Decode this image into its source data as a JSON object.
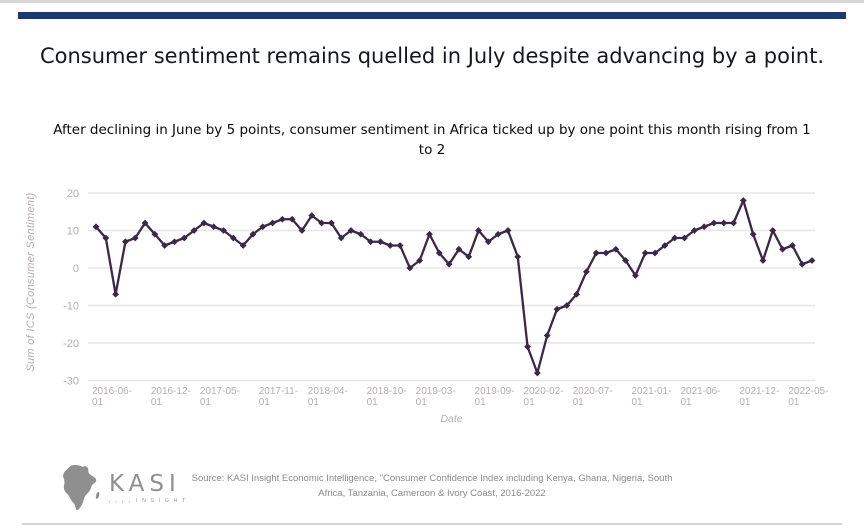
{
  "header": {
    "title": "Consumer sentiment remains quelled in July despite advancing by a point.",
    "subtitle": "After declining in June by 5 points, consumer sentiment in Africa ticked up by one point this month rising from 1 to 2"
  },
  "chart_data": {
    "type": "line",
    "title": "",
    "xlabel": "Date",
    "ylabel": "Sum of ICS (Consumer Sentiment)",
    "ylim": [
      -32,
      24
    ],
    "yticks": [
      20,
      10,
      0,
      -10,
      -20,
      -30
    ],
    "grid": true,
    "legend": "none",
    "line_color": "#3d2749",
    "grid_color": "#e8e5e5",
    "axis_text_color": "#b5aeae",
    "x_tick_labels": [
      "2016-06-01",
      "2016-12-01",
      "2017-05-01",
      "2017-11-01",
      "2018-04-01",
      "2018-10-01",
      "2019-03-01",
      "2019-09-01",
      "2020-02-01",
      "2020-07-01",
      "2021-01-01",
      "2021-06-01",
      "2021-12-01",
      "2022-05-01"
    ],
    "x_tick_indices": [
      0,
      6,
      11,
      17,
      22,
      28,
      33,
      39,
      44,
      49,
      55,
      60,
      66,
      71
    ],
    "series": [
      {
        "name": "Sum of ICS (Consumer Sentiment)",
        "values": [
          11,
          8,
          -7,
          7,
          8,
          12,
          9,
          6,
          7,
          8,
          10,
          12,
          11,
          10,
          8,
          6,
          9,
          11,
          12,
          13,
          13,
          10,
          14,
          12,
          12,
          8,
          10,
          9,
          7,
          7,
          6,
          6,
          0,
          2,
          9,
          4,
          1,
          5,
          3,
          10,
          7,
          9,
          10,
          3,
          -21,
          -28,
          -18,
          -11,
          -10,
          -7,
          -1,
          4,
          4,
          5,
          2,
          -2,
          4,
          4,
          6,
          8,
          8,
          10,
          11,
          12,
          12,
          12,
          18,
          9,
          2,
          10,
          5,
          6,
          1,
          2
        ]
      }
    ]
  },
  "footer": {
    "logo_brand": "KASI",
    "logo_dots": "▪ ▪ ▪ ▪",
    "logo_sub": "INSIGHT",
    "source": "Source: KASI Insight Economic Intelligence, \"Consumer Confidence Index including Kenya, Ghana, Nigeria, South Africa, Tanzania, Cameroon & Ivory Coast, 2016-2022"
  },
  "colors": {
    "top_bar": "#1d3a6d",
    "line": "#3d2749",
    "gridline": "#e8e5e5",
    "axis_text": "#b5aeae",
    "divider": "#d4d4d4"
  }
}
